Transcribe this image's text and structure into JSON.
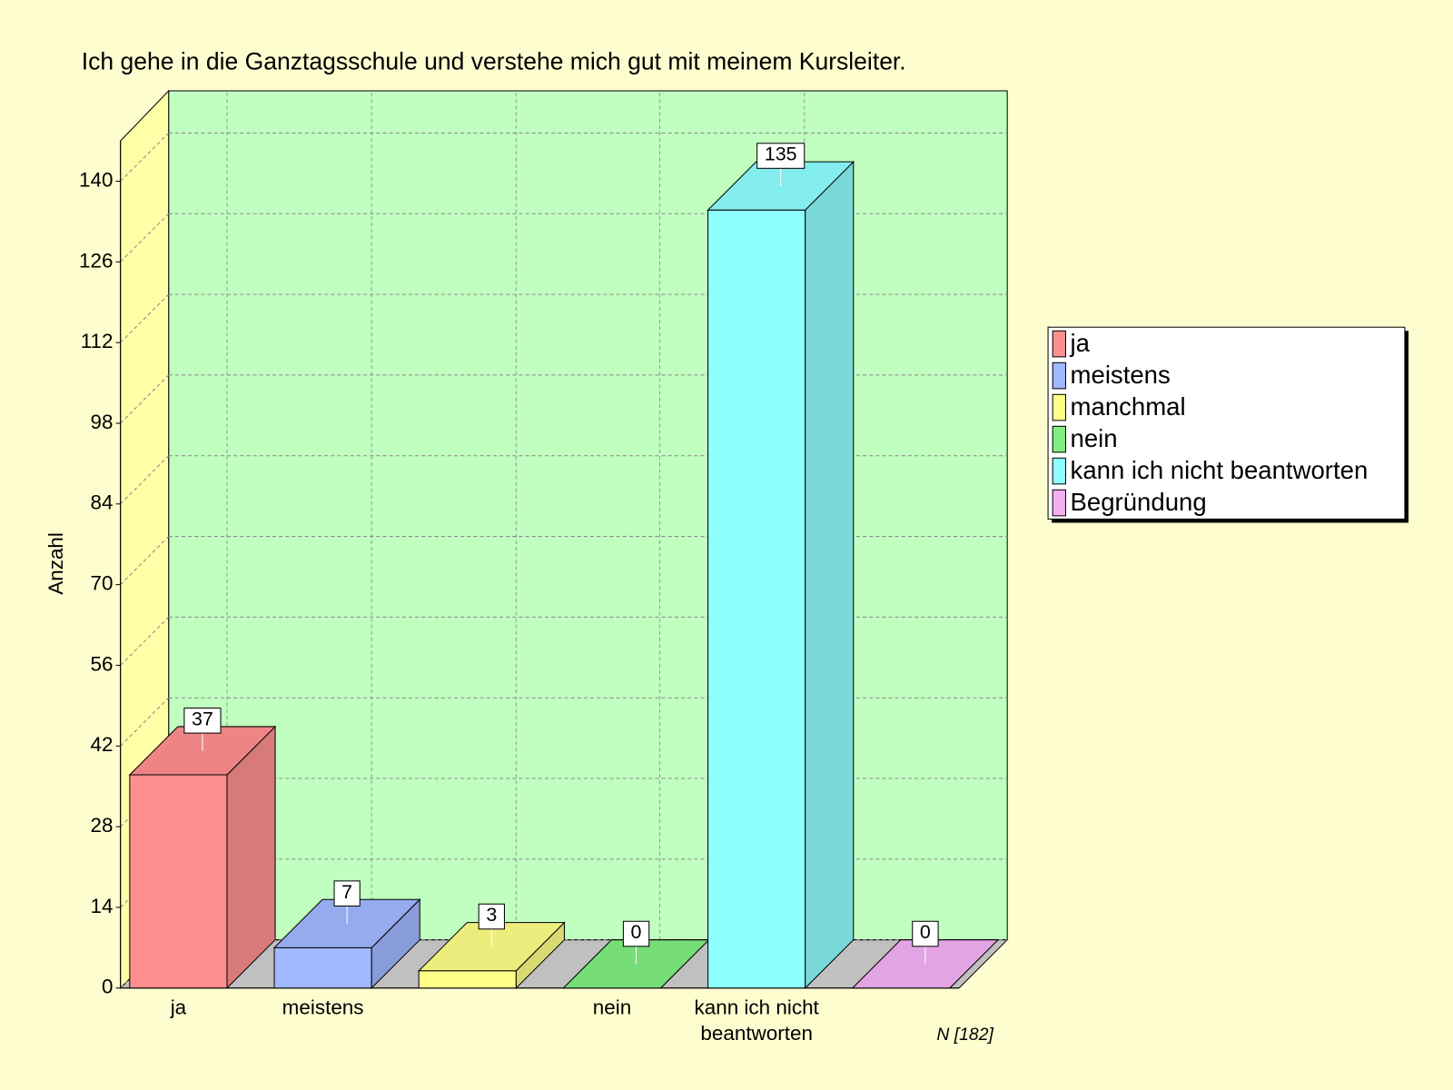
{
  "chart_data": {
    "type": "bar3d",
    "title": "Ich gehe in die Ganztagsschule und verstehe mich gut mit meinem Kursleiter.",
    "ylabel": "Anzahl",
    "note": "N [182]",
    "categories": [
      "ja",
      "meistens",
      null,
      "nein",
      "kann ich nicht beantworten",
      null
    ],
    "legend": [
      "ja",
      "meistens",
      "manchmal",
      "nein",
      "kann ich nicht beantworten",
      "Begründung"
    ],
    "values": [
      37,
      7,
      3,
      0,
      135,
      0
    ],
    "colors": [
      "#ff8f8f",
      "#a0b8ff",
      "#ffff88",
      "#80ee80",
      "#8effff",
      "#f4b0f4"
    ],
    "ylim": [
      0,
      147
    ],
    "yticks": [
      0,
      14,
      28,
      42,
      56,
      70,
      84,
      98,
      112,
      126,
      140
    ],
    "grid": true
  }
}
